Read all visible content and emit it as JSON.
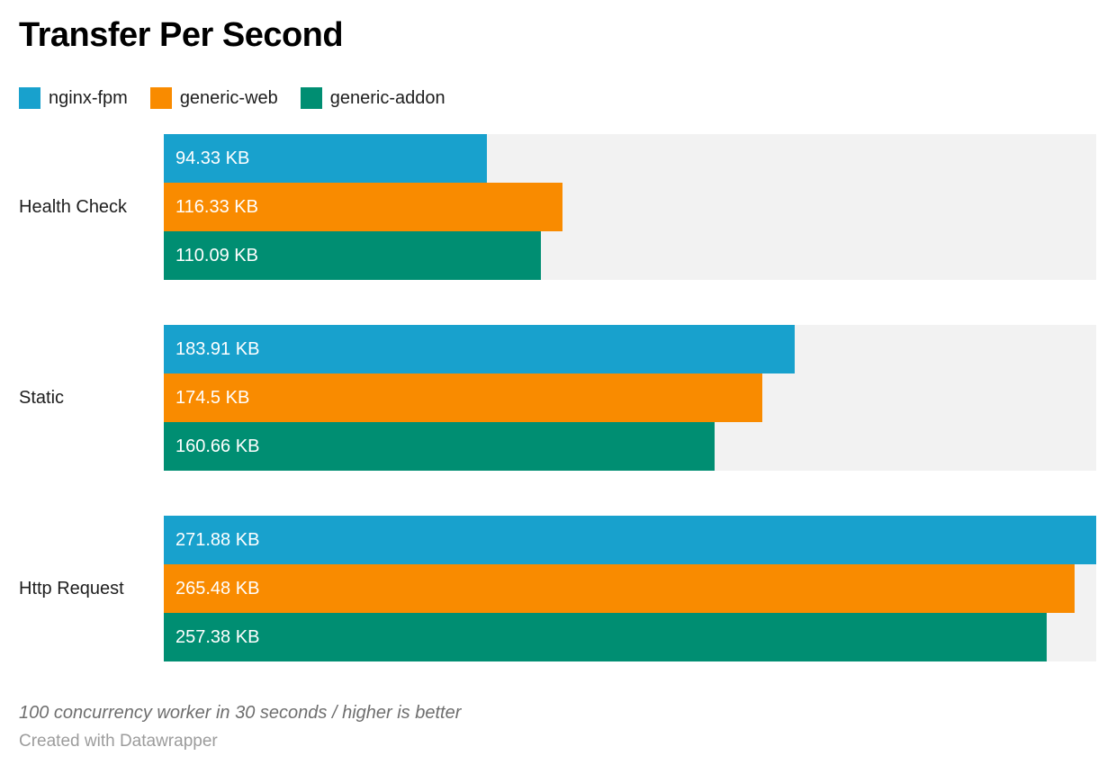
{
  "header": {
    "title": "Transfer Per Second"
  },
  "footer": {
    "note": "100 concurrency worker in 30 seconds / higher is better",
    "attribution": "Created with Datawrapper"
  },
  "colors": {
    "track": "#f2f2f2",
    "value_label": "#ffffff",
    "category_label": "#1d1d1d",
    "note_text": "#6e6e6e",
    "attribution_text": "#9c9c9c"
  },
  "chart_data": {
    "type": "bar",
    "orientation": "horizontal",
    "title": "Transfer Per Second",
    "unit": "KB",
    "xlim": [
      0,
      271.88
    ],
    "grid": false,
    "legend_position": "top",
    "categories": [
      "Health Check",
      "Static",
      "Http Request"
    ],
    "series": [
      {
        "name": "nginx-fpm",
        "color": "#18a1cd",
        "values": [
          94.33,
          183.91,
          271.88
        ],
        "labels": [
          "94.33 KB",
          "183.91 KB",
          "271.88 KB"
        ]
      },
      {
        "name": "generic-web",
        "color": "#f98b00",
        "values": [
          116.33,
          174.5,
          265.48
        ],
        "labels": [
          "116.33 KB",
          "174.5 KB",
          "265.48 KB"
        ]
      },
      {
        "name": "generic-addon",
        "color": "#008e72",
        "values": [
          110.09,
          160.66,
          257.38
        ],
        "labels": [
          "110.09 KB",
          "160.66 KB",
          "257.38 KB"
        ]
      }
    ]
  }
}
